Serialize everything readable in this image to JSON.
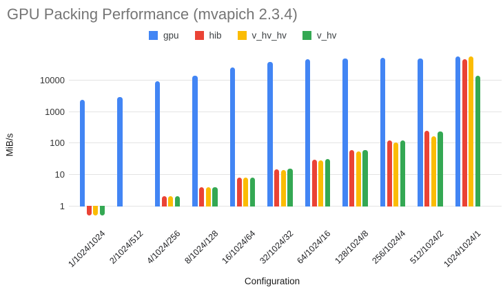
{
  "title": "GPU Packing Performance (mvapich 2.3.4)",
  "chart_data": {
    "type": "bar",
    "title": "GPU Packing Performance (mvapich 2.3.4)",
    "xlabel": "Configuration",
    "ylabel": "MiB/s",
    "y_scale": "log",
    "y_ticks": [
      1,
      10,
      100,
      1000,
      10000
    ],
    "ylim": [
      0.5,
      60000
    ],
    "grid": "horizontal",
    "legend_position": "top-center",
    "categories": [
      "1/1024/1024",
      "2/1024/512",
      "4/1024/256",
      "8/1024/128",
      "16/1024/64",
      "32/1024/32",
      "64/1024/16",
      "128/1024/8",
      "256/1024/4",
      "512/1024/2",
      "1024/1024/1"
    ],
    "series": [
      {
        "name": "gpu",
        "color": "#4285F4",
        "values": [
          2300,
          2800,
          8800,
          13500,
          25000,
          36000,
          44000,
          46000,
          50000,
          48000,
          54000
        ]
      },
      {
        "name": "hib",
        "color": "#EA4335",
        "values": [
          0.5,
          null,
          2.0,
          3.9,
          7.8,
          14.7,
          29,
          58,
          120,
          235,
          44000
        ]
      },
      {
        "name": "v_hv_hv",
        "color": "#FBBC04",
        "values": [
          0.5,
          null,
          2.0,
          3.85,
          7.7,
          14.0,
          27.5,
          52,
          100,
          160,
          55000
        ]
      },
      {
        "name": "v_hv",
        "color": "#34A853",
        "values": [
          0.5,
          null,
          2.05,
          3.95,
          8.0,
          15.3,
          30,
          59,
          117,
          225,
          13500
        ]
      }
    ]
  }
}
